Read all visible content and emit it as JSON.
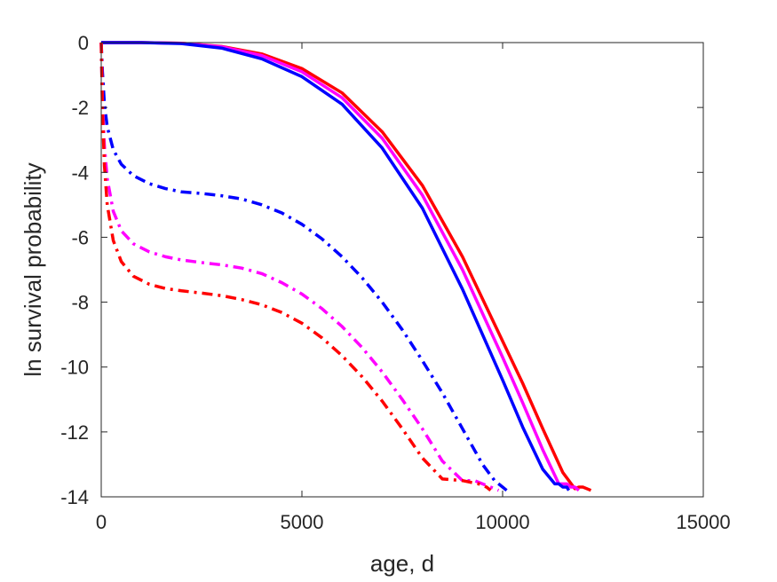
{
  "chart_data": {
    "type": "line",
    "xlabel": "age, d",
    "ylabel": "ln survival probability",
    "xlim": [
      0,
      15000
    ],
    "ylim": [
      -14,
      0
    ],
    "xticks": [
      0,
      5000,
      10000,
      15000
    ],
    "yticks": [
      0,
      -2,
      -4,
      -6,
      -8,
      -10,
      -12,
      -14
    ],
    "xtick_labels": [
      "0",
      "5000",
      "10000",
      "15000"
    ],
    "ytick_labels": [
      "0",
      "-2",
      "-4",
      "-6",
      "-8",
      "-10",
      "-12",
      "-14"
    ],
    "grid": false,
    "series": [
      {
        "color": "#ff0000",
        "style": "solid",
        "x": [
          0,
          500,
          1000,
          2000,
          3000,
          4000,
          5000,
          6000,
          7000,
          8000,
          9000,
          10000,
          10500,
          11000,
          11500,
          11800,
          11900,
          12000,
          12200
        ],
        "y": [
          0,
          0,
          0,
          -0.02,
          -0.12,
          -0.35,
          -0.8,
          -1.55,
          -2.75,
          -4.4,
          -6.6,
          -9.2,
          -10.5,
          -11.9,
          -13.25,
          -13.75,
          -13.7,
          -13.7,
          -13.8
        ]
      },
      {
        "color": "#ff00ff",
        "style": "solid",
        "x": [
          0,
          500,
          1000,
          2000,
          3000,
          4000,
          5000,
          6000,
          7000,
          8000,
          9000,
          10000,
          10500,
          11000,
          11400,
          11600,
          11700,
          11800,
          11900
        ],
        "y": [
          0,
          0,
          0,
          -0.02,
          -0.13,
          -0.4,
          -0.9,
          -1.7,
          -2.95,
          -4.7,
          -7.0,
          -9.7,
          -11.1,
          -12.55,
          -13.6,
          -13.6,
          -13.7,
          -13.7,
          -13.8
        ]
      },
      {
        "color": "#0000ff",
        "style": "solid",
        "x": [
          0,
          500,
          1000,
          2000,
          3000,
          4000,
          5000,
          6000,
          7000,
          8000,
          9000,
          10000,
          10500,
          11000,
          11300,
          11400,
          11500,
          11600,
          11650
        ],
        "y": [
          0,
          0,
          0,
          -0.03,
          -0.17,
          -0.5,
          -1.05,
          -1.9,
          -3.25,
          -5.1,
          -7.6,
          -10.4,
          -11.85,
          -13.15,
          -13.6,
          -13.6,
          -13.7,
          -13.7,
          -13.8
        ]
      },
      {
        "color": "#0000ff",
        "style": "dashdot",
        "x": [
          0,
          30,
          80,
          150,
          300,
          500,
          800,
          1200,
          1600,
          2000,
          2500,
          3000,
          3500,
          4000,
          4500,
          5000,
          5500,
          6000,
          6500,
          7000,
          7500,
          8000,
          8500,
          9000,
          9500,
          9800,
          10000,
          10100
        ],
        "y": [
          0,
          -0.9,
          -1.9,
          -2.6,
          -3.3,
          -3.75,
          -4.1,
          -4.35,
          -4.5,
          -4.6,
          -4.65,
          -4.72,
          -4.82,
          -5.0,
          -5.25,
          -5.6,
          -6.05,
          -6.6,
          -7.25,
          -8.0,
          -8.85,
          -9.8,
          -10.8,
          -11.9,
          -13.0,
          -13.5,
          -13.7,
          -13.8
        ]
      },
      {
        "color": "#ff00ff",
        "style": "dashdot",
        "x": [
          0,
          30,
          80,
          150,
          300,
          500,
          800,
          1200,
          1600,
          2000,
          2500,
          3000,
          3500,
          4000,
          4500,
          5000,
          5500,
          6000,
          6500,
          7000,
          7500,
          8000,
          8500,
          9000,
          9300,
          9500,
          9700,
          9900
        ],
        "y": [
          0,
          -1.8,
          -3.2,
          -4.2,
          -5.2,
          -5.8,
          -6.2,
          -6.45,
          -6.6,
          -6.7,
          -6.78,
          -6.85,
          -6.95,
          -7.12,
          -7.4,
          -7.75,
          -8.2,
          -8.75,
          -9.4,
          -10.15,
          -11.0,
          -11.9,
          -12.9,
          -13.5,
          -13.5,
          -13.6,
          -13.7,
          -13.8
        ]
      },
      {
        "color": "#ff0000",
        "style": "dashdot",
        "x": [
          0,
          30,
          80,
          150,
          300,
          500,
          800,
          1200,
          1600,
          2000,
          2500,
          3000,
          3500,
          4000,
          4500,
          5000,
          5500,
          6000,
          6500,
          7000,
          7500,
          8000,
          8500,
          9000,
          9200,
          9400,
          9600,
          9700
        ],
        "y": [
          0,
          -2.1,
          -3.8,
          -5.0,
          -6.1,
          -6.75,
          -7.2,
          -7.45,
          -7.58,
          -7.65,
          -7.72,
          -7.8,
          -7.92,
          -8.08,
          -8.32,
          -8.65,
          -9.1,
          -9.65,
          -10.3,
          -11.05,
          -11.9,
          -12.8,
          -13.45,
          -13.5,
          -13.55,
          -13.6,
          -13.7,
          -13.8
        ]
      }
    ]
  }
}
